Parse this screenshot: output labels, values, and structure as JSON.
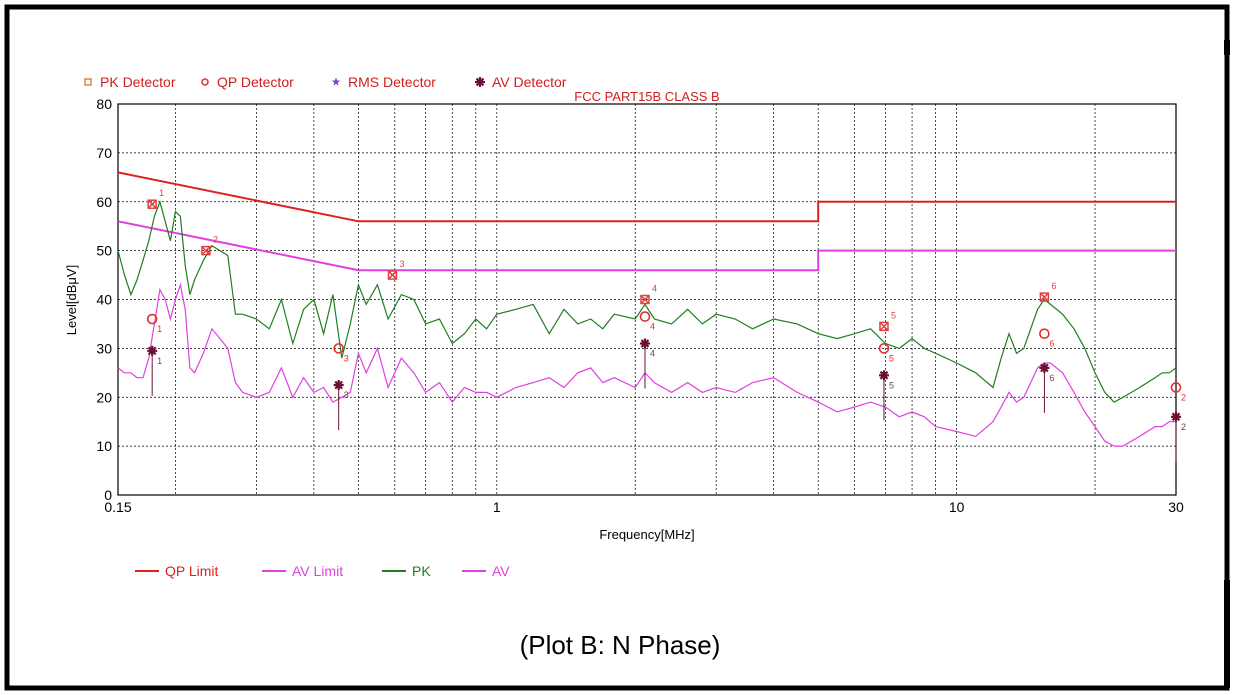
{
  "caption": "(Plot B: N Phase)",
  "colors": {
    "qp_limit": "#e02020",
    "av_limit": "#e040e0",
    "pk": "#1f7f1f",
    "av": "#e040e0",
    "pk_marker": "#e04040",
    "qp_marker": "#e03030",
    "rms_marker": "#7b3fd0",
    "av_marker": "#6b1030",
    "grid": "#000000"
  },
  "chart_data": {
    "type": "line",
    "title": "FCC PART15B CLASS B",
    "xlabel": "Frequency[MHz]",
    "ylabel": "Level[dBμV]",
    "xscale": "log",
    "xlim": [
      0.15,
      30
    ],
    "ylim": [
      0,
      80
    ],
    "grid": true,
    "x_ticks": [
      {
        "value": 0.15,
        "label": "0.15"
      },
      {
        "value": 1,
        "label": "1"
      },
      {
        "value": 10,
        "label": "10"
      },
      {
        "value": 30,
        "label": "30"
      }
    ],
    "y_ticks": [
      0,
      10,
      20,
      30,
      40,
      50,
      60,
      70,
      80
    ],
    "detector_legend": [
      {
        "name": "PK Detector",
        "symbol": "square",
        "color": "#e07030"
      },
      {
        "name": "QP Detector",
        "symbol": "circle",
        "color": "#e03030"
      },
      {
        "name": "RMS Detector",
        "symbol": "star",
        "color": "#7b3fd0"
      },
      {
        "name": "AV Detector",
        "symbol": "asterisk",
        "color": "#6b1030"
      }
    ],
    "legend": [
      {
        "name": "QP Limit",
        "color": "#e02020"
      },
      {
        "name": "AV Limit",
        "color": "#e040e0"
      },
      {
        "name": "PK",
        "color": "#1f7f1f"
      },
      {
        "name": "AV",
        "color": "#e040e0"
      }
    ],
    "limits": [
      {
        "name": "QP Limit",
        "points": [
          [
            0.15,
            66
          ],
          [
            0.5,
            56
          ],
          [
            5,
            56
          ],
          [
            5,
            60
          ],
          [
            30,
            60
          ]
        ]
      },
      {
        "name": "AV Limit",
        "points": [
          [
            0.15,
            56
          ],
          [
            0.5,
            46
          ],
          [
            5,
            46
          ],
          [
            5,
            50
          ],
          [
            30,
            50
          ]
        ]
      }
    ],
    "series": [
      {
        "name": "PK",
        "points": [
          [
            0.15,
            50
          ],
          [
            0.155,
            45
          ],
          [
            0.16,
            41
          ],
          [
            0.165,
            44
          ],
          [
            0.17,
            48
          ],
          [
            0.175,
            52
          ],
          [
            0.18,
            57
          ],
          [
            0.185,
            60
          ],
          [
            0.19,
            56
          ],
          [
            0.195,
            52
          ],
          [
            0.2,
            58
          ],
          [
            0.205,
            57
          ],
          [
            0.21,
            47
          ],
          [
            0.215,
            41
          ],
          [
            0.22,
            44
          ],
          [
            0.23,
            48
          ],
          [
            0.24,
            51
          ],
          [
            0.25,
            50
          ],
          [
            0.26,
            49
          ],
          [
            0.27,
            37
          ],
          [
            0.28,
            37
          ],
          [
            0.3,
            36
          ],
          [
            0.32,
            34
          ],
          [
            0.34,
            40
          ],
          [
            0.36,
            31
          ],
          [
            0.38,
            38
          ],
          [
            0.4,
            40
          ],
          [
            0.42,
            33
          ],
          [
            0.44,
            41
          ],
          [
            0.46,
            28
          ],
          [
            0.48,
            35
          ],
          [
            0.5,
            43
          ],
          [
            0.52,
            39
          ],
          [
            0.55,
            43
          ],
          [
            0.58,
            36
          ],
          [
            0.62,
            41
          ],
          [
            0.66,
            40
          ],
          [
            0.7,
            35
          ],
          [
            0.75,
            36
          ],
          [
            0.8,
            31
          ],
          [
            0.85,
            33
          ],
          [
            0.9,
            36
          ],
          [
            0.95,
            34
          ],
          [
            1.0,
            37
          ],
          [
            1.1,
            38
          ],
          [
            1.2,
            39
          ],
          [
            1.3,
            33
          ],
          [
            1.4,
            38
          ],
          [
            1.5,
            35
          ],
          [
            1.6,
            36
          ],
          [
            1.7,
            34
          ],
          [
            1.8,
            37
          ],
          [
            2.0,
            36
          ],
          [
            2.1,
            39
          ],
          [
            2.2,
            36
          ],
          [
            2.4,
            35
          ],
          [
            2.6,
            38
          ],
          [
            2.8,
            35
          ],
          [
            3.0,
            37
          ],
          [
            3.3,
            36
          ],
          [
            3.6,
            34
          ],
          [
            4.0,
            36
          ],
          [
            4.5,
            35
          ],
          [
            5.0,
            33
          ],
          [
            5.5,
            32
          ],
          [
            6.0,
            33
          ],
          [
            6.5,
            34
          ],
          [
            7.0,
            31
          ],
          [
            7.5,
            30
          ],
          [
            8.0,
            32
          ],
          [
            8.5,
            30
          ],
          [
            9.0,
            29
          ],
          [
            10.0,
            27
          ],
          [
            11.0,
            25
          ],
          [
            12.0,
            22
          ],
          [
            12.5,
            28
          ],
          [
            13.0,
            33
          ],
          [
            13.5,
            29
          ],
          [
            14.0,
            30
          ],
          [
            15.0,
            38
          ],
          [
            15.5,
            40
          ],
          [
            16.0,
            39
          ],
          [
            17.0,
            37
          ],
          [
            18.0,
            34
          ],
          [
            19.0,
            30
          ],
          [
            20.0,
            25
          ],
          [
            21.0,
            21
          ],
          [
            22.0,
            19
          ],
          [
            23.0,
            20
          ],
          [
            24.0,
            21
          ],
          [
            25.0,
            22
          ],
          [
            26.0,
            23
          ],
          [
            27.0,
            24
          ],
          [
            28.0,
            25
          ],
          [
            29.0,
            25
          ],
          [
            30.0,
            26
          ]
        ]
      },
      {
        "name": "AV",
        "points": [
          [
            0.15,
            26
          ],
          [
            0.155,
            25
          ],
          [
            0.16,
            25
          ],
          [
            0.165,
            24
          ],
          [
            0.17,
            24
          ],
          [
            0.175,
            28
          ],
          [
            0.18,
            35
          ],
          [
            0.185,
            42
          ],
          [
            0.19,
            40
          ],
          [
            0.195,
            36
          ],
          [
            0.2,
            40
          ],
          [
            0.205,
            43
          ],
          [
            0.21,
            38
          ],
          [
            0.215,
            26
          ],
          [
            0.22,
            25
          ],
          [
            0.23,
            29
          ],
          [
            0.24,
            34
          ],
          [
            0.25,
            32
          ],
          [
            0.26,
            30
          ],
          [
            0.27,
            23
          ],
          [
            0.28,
            21
          ],
          [
            0.3,
            20
          ],
          [
            0.32,
            21
          ],
          [
            0.34,
            26
          ],
          [
            0.36,
            20
          ],
          [
            0.38,
            24
          ],
          [
            0.4,
            21
          ],
          [
            0.42,
            22
          ],
          [
            0.44,
            19
          ],
          [
            0.46,
            20
          ],
          [
            0.48,
            21
          ],
          [
            0.5,
            29
          ],
          [
            0.52,
            25
          ],
          [
            0.55,
            30
          ],
          [
            0.58,
            22
          ],
          [
            0.62,
            28
          ],
          [
            0.66,
            25
          ],
          [
            0.7,
            21
          ],
          [
            0.75,
            23
          ],
          [
            0.8,
            19
          ],
          [
            0.85,
            22
          ],
          [
            0.9,
            21
          ],
          [
            0.95,
            21
          ],
          [
            1.0,
            20
          ],
          [
            1.1,
            22
          ],
          [
            1.2,
            23
          ],
          [
            1.3,
            24
          ],
          [
            1.4,
            22
          ],
          [
            1.5,
            25
          ],
          [
            1.6,
            26
          ],
          [
            1.7,
            23
          ],
          [
            1.8,
            24
          ],
          [
            2.0,
            22
          ],
          [
            2.1,
            25
          ],
          [
            2.2,
            23
          ],
          [
            2.4,
            21
          ],
          [
            2.6,
            23
          ],
          [
            2.8,
            21
          ],
          [
            3.0,
            22
          ],
          [
            3.3,
            21
          ],
          [
            3.6,
            23
          ],
          [
            4.0,
            24
          ],
          [
            4.5,
            21
          ],
          [
            5.0,
            19
          ],
          [
            5.5,
            17
          ],
          [
            6.0,
            18
          ],
          [
            6.5,
            19
          ],
          [
            7.0,
            18
          ],
          [
            7.5,
            16
          ],
          [
            8.0,
            17
          ],
          [
            8.5,
            16
          ],
          [
            9.0,
            14
          ],
          [
            10.0,
            13
          ],
          [
            11.0,
            12
          ],
          [
            12.0,
            15
          ],
          [
            12.5,
            18
          ],
          [
            13.0,
            21
          ],
          [
            13.5,
            19
          ],
          [
            14.0,
            20
          ],
          [
            15.0,
            26
          ],
          [
            15.5,
            27
          ],
          [
            16.0,
            27
          ],
          [
            17.0,
            25
          ],
          [
            18.0,
            21
          ],
          [
            19.0,
            17
          ],
          [
            20.0,
            14
          ],
          [
            21.0,
            11
          ],
          [
            22.0,
            10
          ],
          [
            23.0,
            10
          ],
          [
            24.0,
            11
          ],
          [
            25.0,
            12
          ],
          [
            26.0,
            13
          ],
          [
            27.0,
            14
          ],
          [
            28.0,
            14
          ],
          [
            29.0,
            15
          ],
          [
            30.0,
            15
          ]
        ]
      }
    ],
    "markers": {
      "pk": [
        {
          "label": "1",
          "x": 0.178,
          "y": 59.5
        },
        {
          "label": "2",
          "x": 0.233,
          "y": 50
        },
        {
          "label": "3",
          "x": 0.593,
          "y": 45
        },
        {
          "label": "4",
          "x": 2.1,
          "y": 40
        },
        {
          "label": "5",
          "x": 6.95,
          "y": 34.5
        },
        {
          "label": "6",
          "x": 15.52,
          "y": 40.5
        }
      ],
      "qp": [
        {
          "label": "1",
          "x": 0.178,
          "y": 36
        },
        {
          "label": "3",
          "x": 0.453,
          "y": 30
        },
        {
          "label": "4",
          "x": 2.1,
          "y": 36.5
        },
        {
          "label": "5",
          "x": 6.95,
          "y": 30
        },
        {
          "label": "6",
          "x": 15.52,
          "y": 33
        },
        {
          "label": "2",
          "x": 30,
          "y": 22
        }
      ],
      "av": [
        {
          "label": "1",
          "x": 0.178,
          "y": 29.5
        },
        {
          "label": "3",
          "x": 0.453,
          "y": 22.5
        },
        {
          "label": "4",
          "x": 2.1,
          "y": 31
        },
        {
          "label": "5",
          "x": 6.95,
          "y": 24.5
        },
        {
          "label": "6",
          "x": 15.52,
          "y": 26
        },
        {
          "label": "2",
          "x": 30,
          "y": 16
        }
      ]
    }
  }
}
